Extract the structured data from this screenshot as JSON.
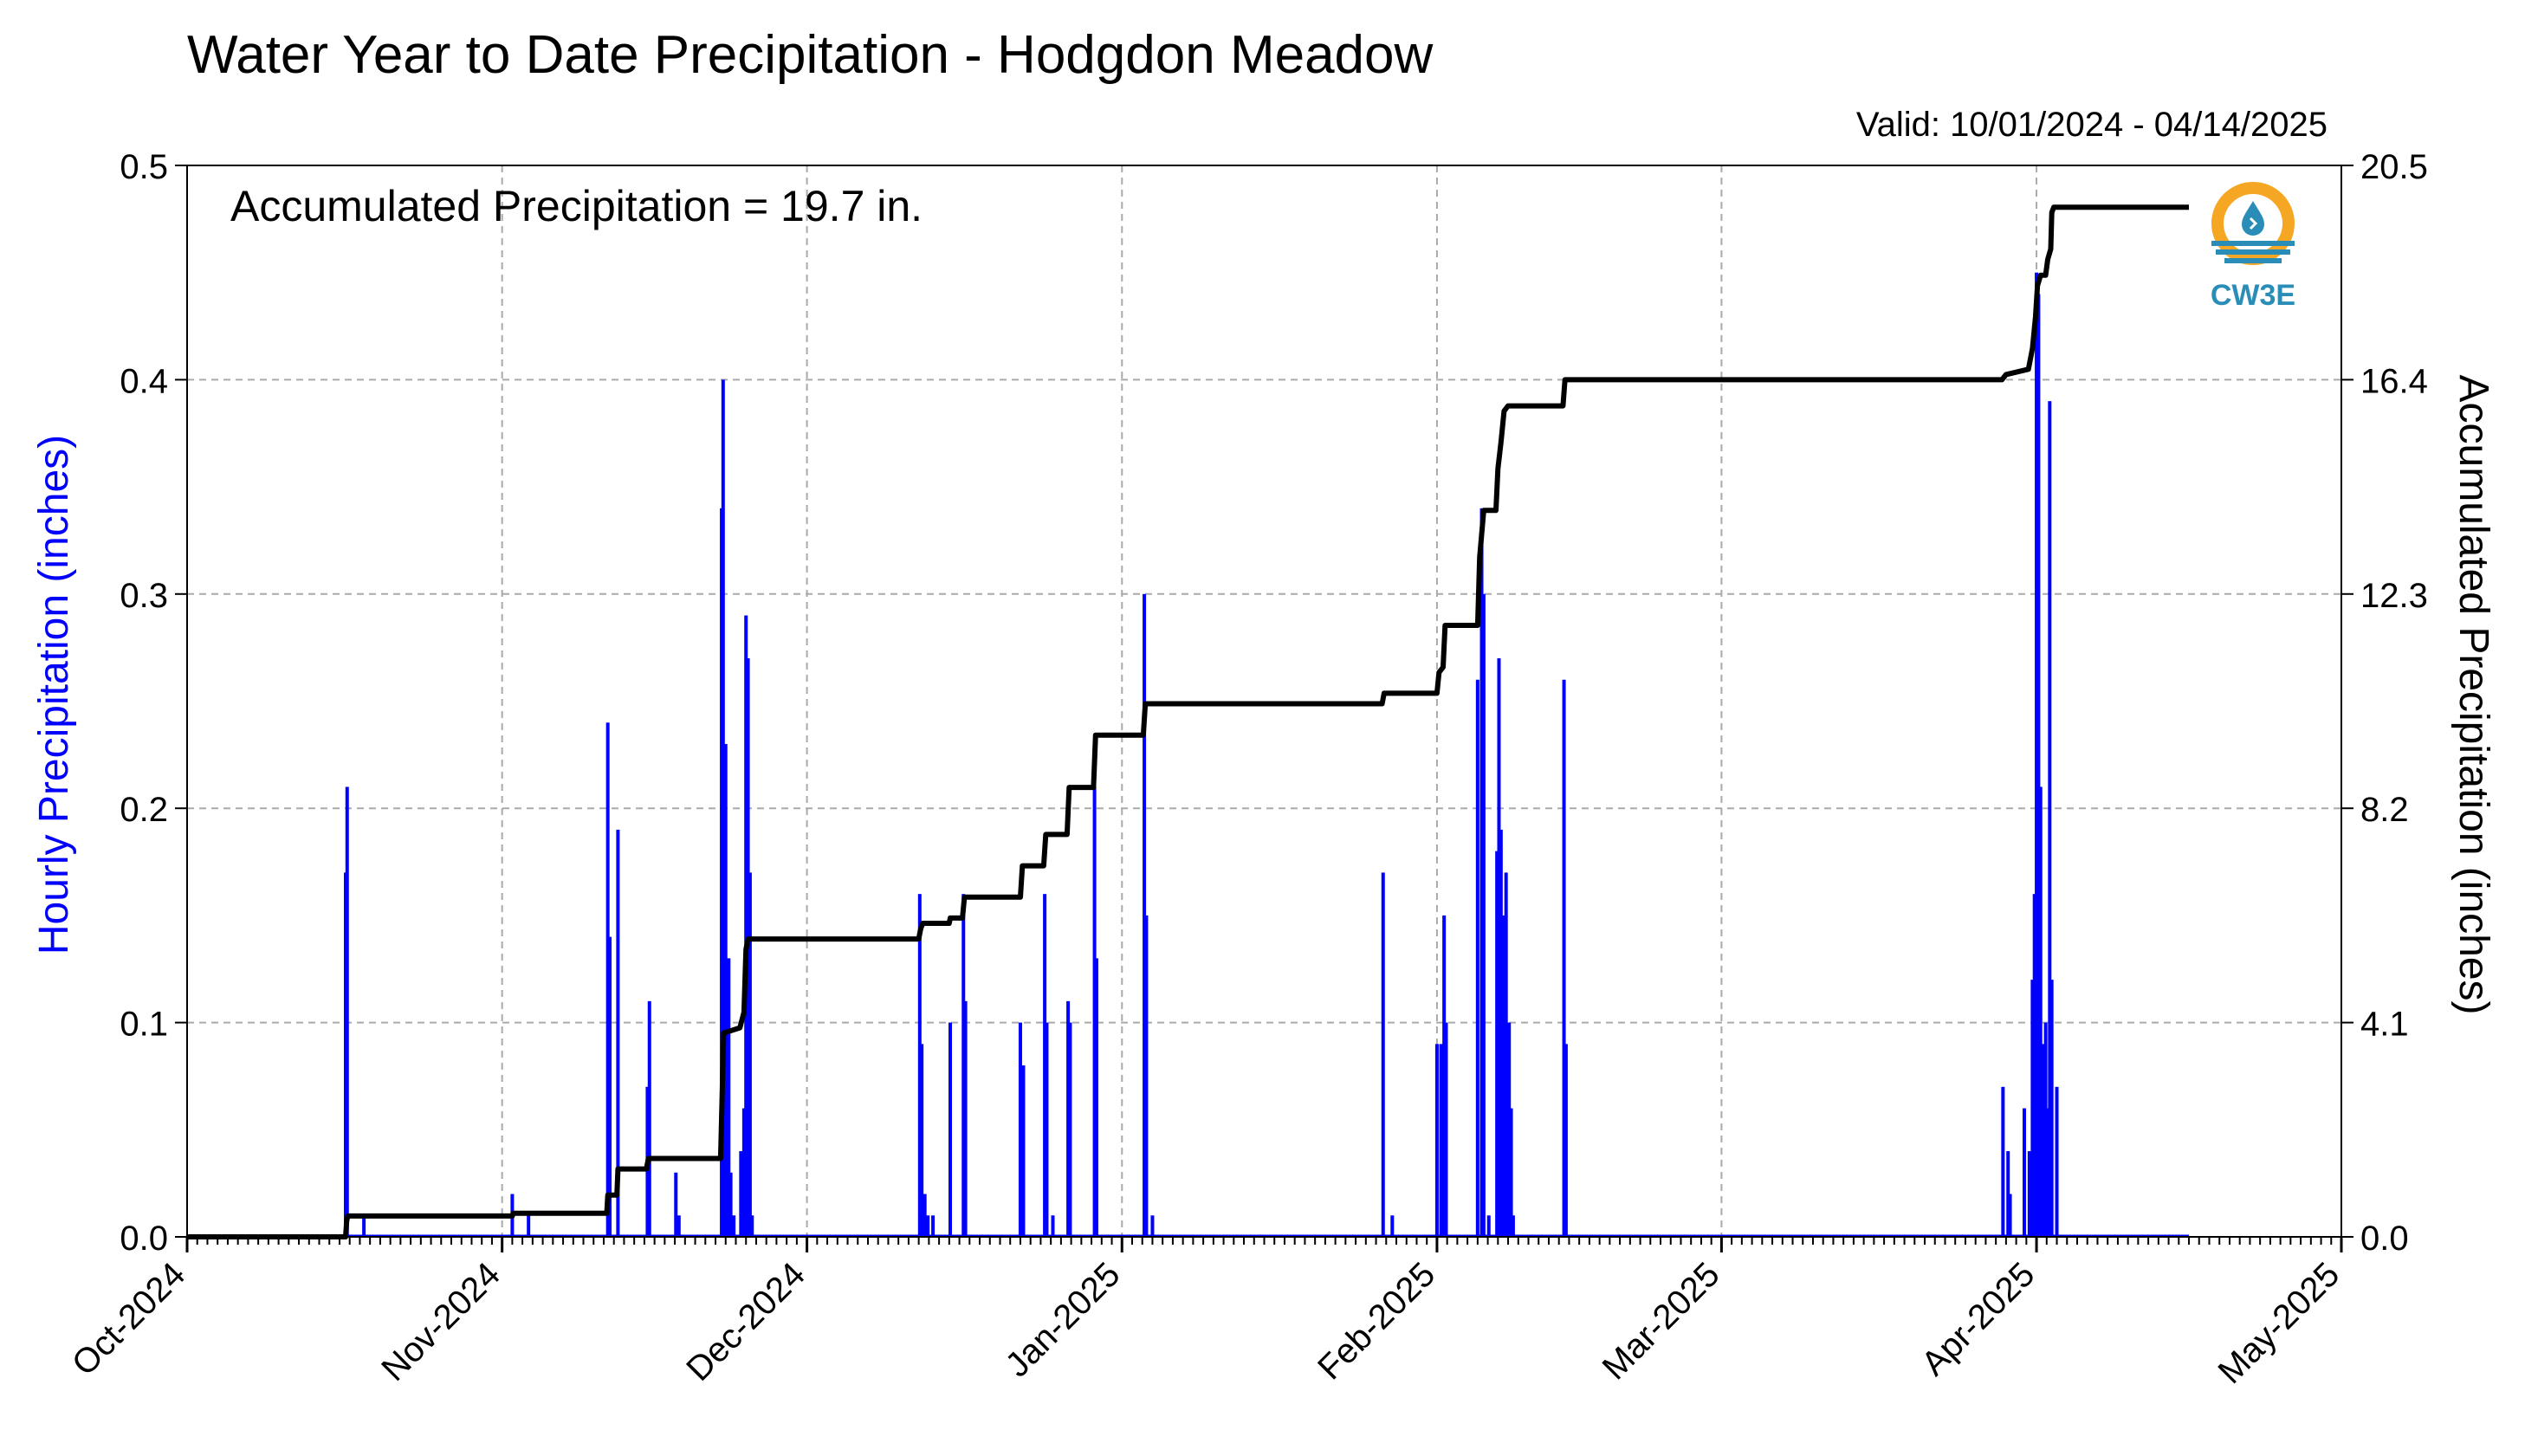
{
  "title": "Water Year to Date Precipitation - Hodgdon Meadow",
  "valid_text": "Valid: 10/01/2024 - 04/14/2025",
  "annotation": "Accumulated Precipitation = 19.7 in.",
  "logo_text": "CW3E",
  "colors": {
    "hourly": "#0000ff",
    "accumulated": "#000000",
    "grid": "#aaaaaa",
    "logo_orange": "#f5a623",
    "logo_blue": "#2a8db8"
  },
  "chart_data": {
    "type": "bar",
    "title": "Water Year to Date Precipitation - Hodgdon Meadow",
    "x_range_days": [
      0,
      212
    ],
    "x_ticks": [
      {
        "label": "Oct-2024",
        "day": 0
      },
      {
        "label": "Nov-2024",
        "day": 31
      },
      {
        "label": "Dec-2024",
        "day": 61
      },
      {
        "label": "Jan-2025",
        "day": 92
      },
      {
        "label": "Feb-2025",
        "day": 123
      },
      {
        "label": "Mar-2025",
        "day": 151
      },
      {
        "label": "Apr-2025",
        "day": 182
      },
      {
        "label": "May-2025",
        "day": 212
      }
    ],
    "y_left": {
      "label": "Hourly Precipitation (inches)",
      "ylim": [
        0,
        0.5
      ],
      "ticks": [
        "0.0",
        "0.1",
        "0.2",
        "0.3",
        "0.4",
        "0.5"
      ]
    },
    "y_right": {
      "label": "Accumulated Precipitation (inches)",
      "ylim": [
        0,
        20.5
      ],
      "ticks": [
        "0.0",
        "4.1",
        "8.2",
        "12.3",
        "16.4",
        "20.5"
      ]
    },
    "grid": true,
    "series": [
      {
        "kind": "hourly_bars",
        "points": [
          [
            15.6,
            0.17
          ],
          [
            15.75,
            0.21
          ],
          [
            17.4,
            0.01
          ],
          [
            32.0,
            0.02
          ],
          [
            33.6,
            0.01
          ],
          [
            41.4,
            0.24
          ],
          [
            41.6,
            0.14
          ],
          [
            42.4,
            0.19
          ],
          [
            45.3,
            0.07
          ],
          [
            45.5,
            0.11
          ],
          [
            48.1,
            0.03
          ],
          [
            48.4,
            0.01
          ],
          [
            52.6,
            0.34
          ],
          [
            52.75,
            0.4
          ],
          [
            53.0,
            0.23
          ],
          [
            53.3,
            0.13
          ],
          [
            53.5,
            0.03
          ],
          [
            53.8,
            0.01
          ],
          [
            54.5,
            0.04
          ],
          [
            54.8,
            0.06
          ],
          [
            55.0,
            0.29
          ],
          [
            55.2,
            0.27
          ],
          [
            55.4,
            0.17
          ],
          [
            55.6,
            0.01
          ],
          [
            72.1,
            0.16
          ],
          [
            72.3,
            0.09
          ],
          [
            72.6,
            0.02
          ],
          [
            72.9,
            0.01
          ],
          [
            73.4,
            0.01
          ],
          [
            75.1,
            0.1
          ],
          [
            76.4,
            0.16
          ],
          [
            76.6,
            0.11
          ],
          [
            82.0,
            0.1
          ],
          [
            82.3,
            0.08
          ],
          [
            84.4,
            0.16
          ],
          [
            84.6,
            0.1
          ],
          [
            85.2,
            0.01
          ],
          [
            86.7,
            0.11
          ],
          [
            86.9,
            0.1
          ],
          [
            89.3,
            0.21
          ],
          [
            89.5,
            0.13
          ],
          [
            94.2,
            0.3
          ],
          [
            94.4,
            0.15
          ],
          [
            95.0,
            0.01
          ],
          [
            117.7,
            0.17
          ],
          [
            118.6,
            0.01
          ],
          [
            123.0,
            0.09
          ],
          [
            123.4,
            0.09
          ],
          [
            123.7,
            0.15
          ],
          [
            123.9,
            0.1
          ],
          [
            127.0,
            0.26
          ],
          [
            127.4,
            0.34
          ],
          [
            127.6,
            0.3
          ],
          [
            128.1,
            0.01
          ],
          [
            128.9,
            0.18
          ],
          [
            129.1,
            0.27
          ],
          [
            129.3,
            0.19
          ],
          [
            129.5,
            0.15
          ],
          [
            129.8,
            0.17
          ],
          [
            130.1,
            0.1
          ],
          [
            130.3,
            0.06
          ],
          [
            130.5,
            0.01
          ],
          [
            135.5,
            0.26
          ],
          [
            135.7,
            0.09
          ],
          [
            178.7,
            0.07
          ],
          [
            179.2,
            0.04
          ],
          [
            179.4,
            0.02
          ],
          [
            180.8,
            0.06
          ],
          [
            181.3,
            0.04
          ],
          [
            181.6,
            0.12
          ],
          [
            181.8,
            0.16
          ],
          [
            182.0,
            0.45
          ],
          [
            182.2,
            0.44
          ],
          [
            182.4,
            0.21
          ],
          [
            182.7,
            0.09
          ],
          [
            182.9,
            0.1
          ],
          [
            183.1,
            0.06
          ],
          [
            183.3,
            0.39
          ],
          [
            183.5,
            0.12
          ],
          [
            184.0,
            0.07
          ]
        ]
      },
      {
        "kind": "accumulated_line",
        "points": [
          [
            0,
            0
          ],
          [
            15.6,
            0
          ],
          [
            15.7,
            0.3
          ],
          [
            15.8,
            0.4
          ],
          [
            32,
            0.4
          ],
          [
            32.1,
            0.45
          ],
          [
            41.3,
            0.45
          ],
          [
            41.4,
            0.8
          ],
          [
            42.3,
            0.8
          ],
          [
            42.4,
            1.3
          ],
          [
            45.2,
            1.3
          ],
          [
            45.4,
            1.5
          ],
          [
            48.0,
            1.5
          ],
          [
            48.2,
            1.5
          ],
          [
            52.5,
            1.5
          ],
          [
            52.6,
            2.3
          ],
          [
            52.8,
            3.9
          ],
          [
            54.4,
            4.0
          ],
          [
            54.8,
            4.3
          ],
          [
            55.0,
            5.5
          ],
          [
            55.2,
            5.7
          ],
          [
            72.0,
            5.7
          ],
          [
            72.2,
            5.9
          ],
          [
            72.4,
            6.0
          ],
          [
            75.0,
            6.0
          ],
          [
            75.1,
            6.1
          ],
          [
            76.3,
            6.1
          ],
          [
            76.5,
            6.5
          ],
          [
            82.0,
            6.5
          ],
          [
            82.2,
            7.1
          ],
          [
            84.3,
            7.1
          ],
          [
            84.5,
            7.7
          ],
          [
            86.6,
            7.7
          ],
          [
            86.8,
            8.6
          ],
          [
            89.2,
            8.6
          ],
          [
            89.4,
            9.6
          ],
          [
            94.1,
            9.6
          ],
          [
            94.3,
            10.2
          ],
          [
            117.6,
            10.2
          ],
          [
            117.8,
            10.4
          ],
          [
            123.0,
            10.4
          ],
          [
            123.2,
            10.8
          ],
          [
            123.6,
            10.9
          ],
          [
            123.8,
            11.7
          ],
          [
            127.0,
            11.7
          ],
          [
            127.2,
            13.0
          ],
          [
            127.6,
            13.9
          ],
          [
            128.8,
            13.9
          ],
          [
            129.0,
            14.7
          ],
          [
            129.3,
            15.2
          ],
          [
            129.6,
            15.8
          ],
          [
            130.0,
            15.9
          ],
          [
            135.4,
            15.9
          ],
          [
            135.6,
            16.4
          ],
          [
            178.6,
            16.4
          ],
          [
            179.0,
            16.5
          ],
          [
            181.2,
            16.6
          ],
          [
            181.6,
            17.0
          ],
          [
            181.9,
            17.6
          ],
          [
            182.1,
            18.2
          ],
          [
            182.4,
            18.4
          ],
          [
            182.9,
            18.4
          ],
          [
            183.1,
            18.7
          ],
          [
            183.4,
            18.9
          ],
          [
            183.5,
            19.6
          ],
          [
            183.7,
            19.7
          ],
          [
            197.0,
            19.7
          ]
        ]
      }
    ]
  }
}
